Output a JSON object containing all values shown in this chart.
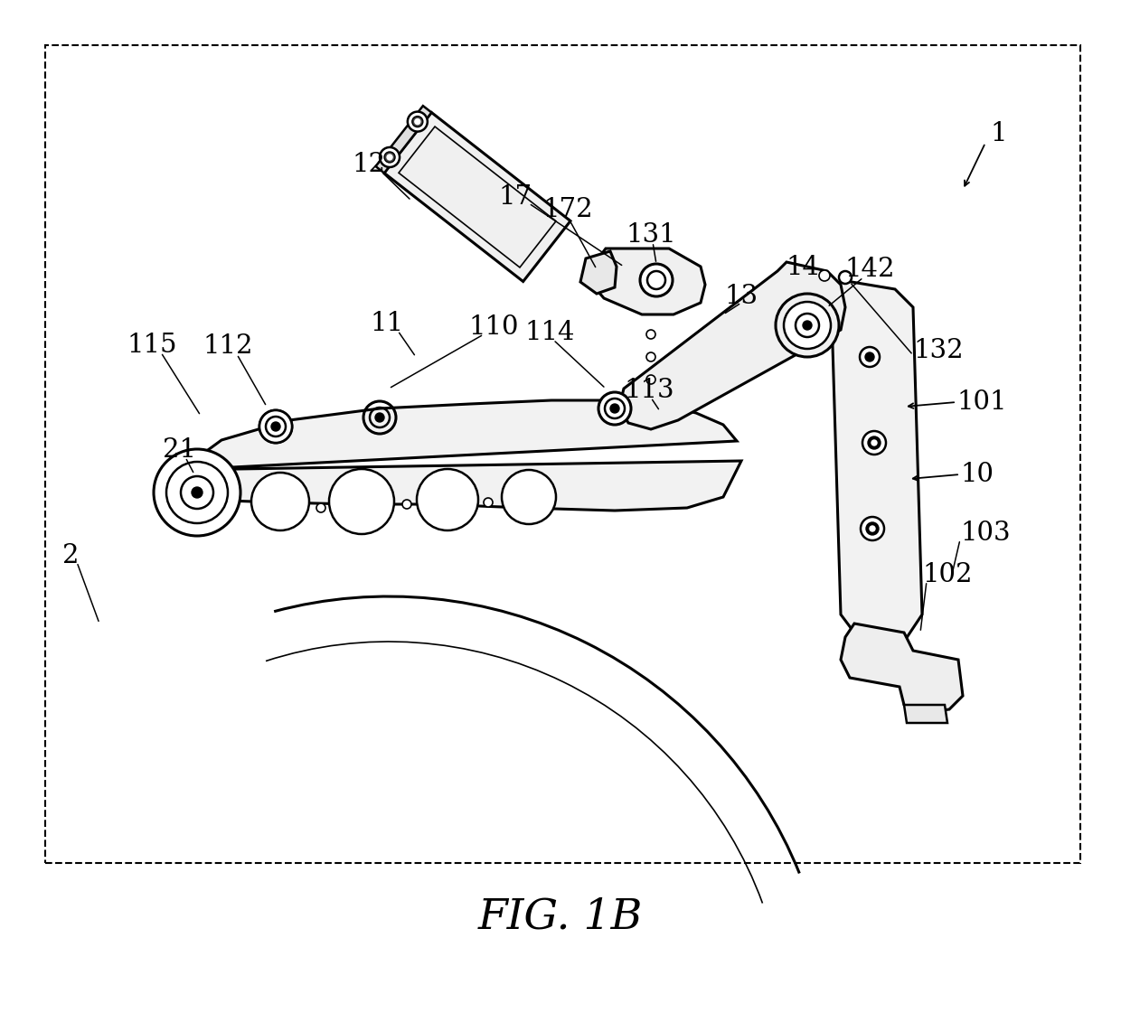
{
  "title": "FIG. 1B",
  "background_color": "#ffffff",
  "line_color": "#000000",
  "fig_width": 12.4,
  "fig_height": 11.21,
  "dpi": 100
}
